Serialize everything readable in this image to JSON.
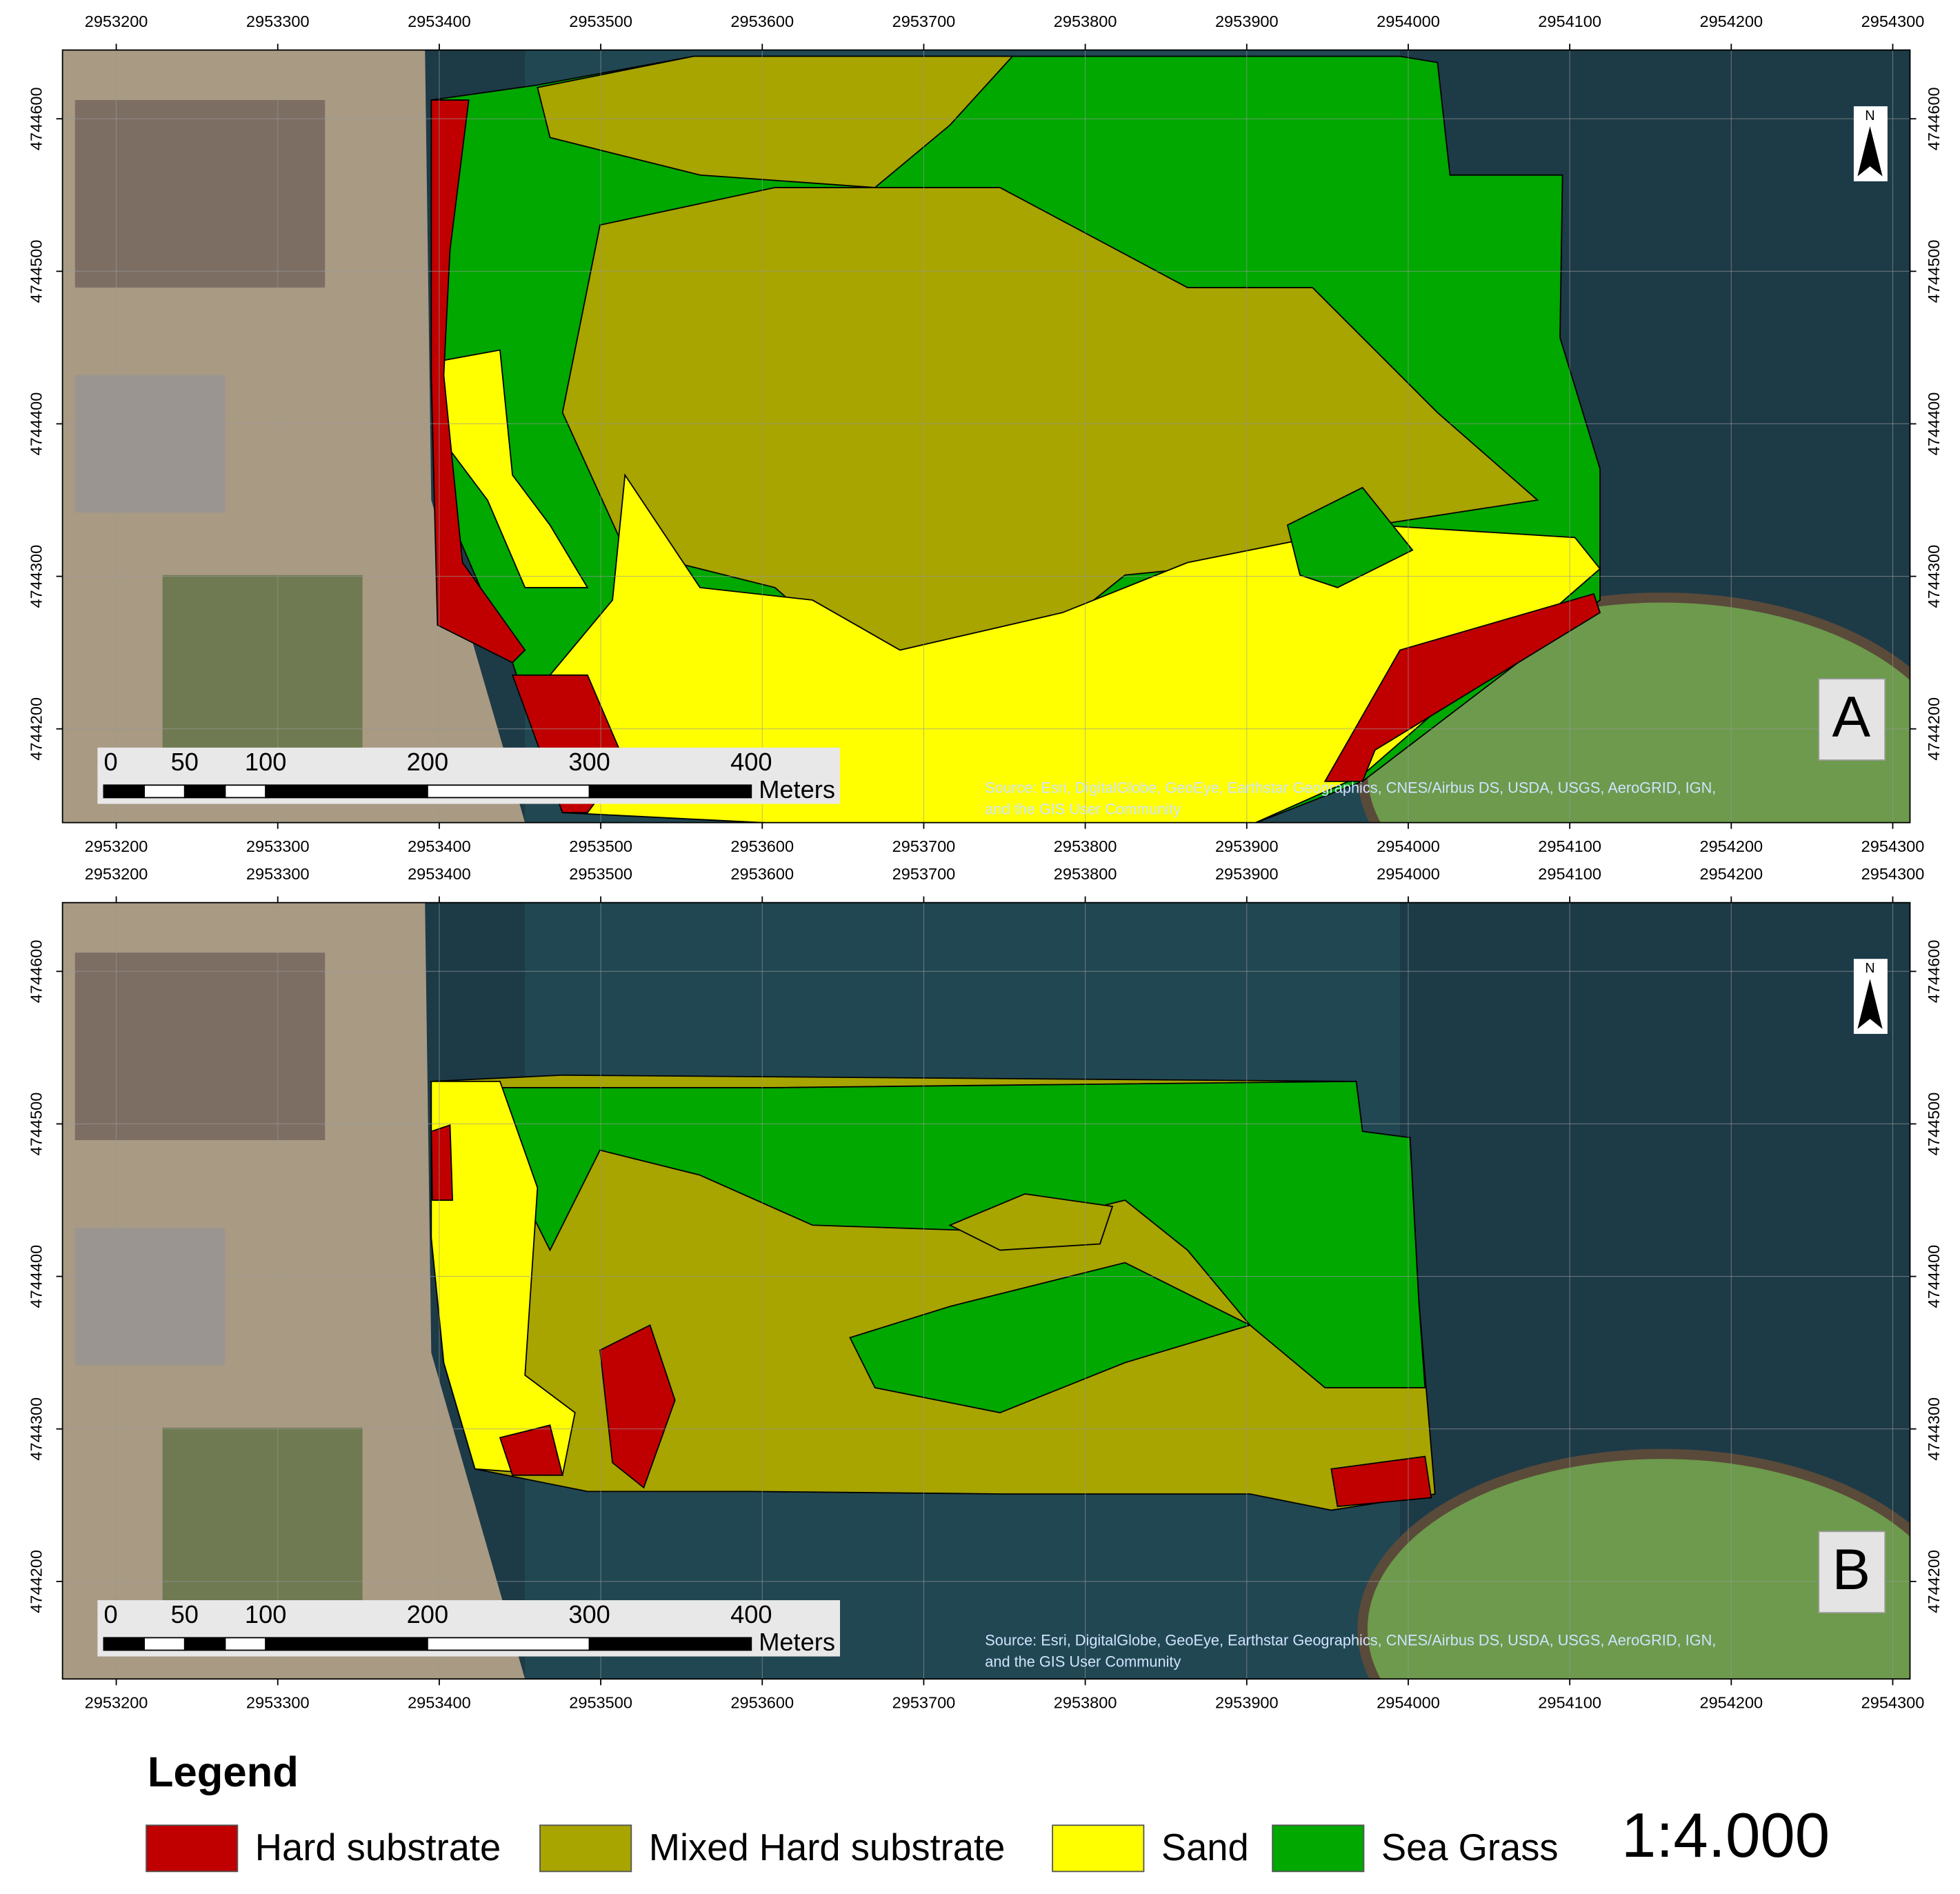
{
  "x_ticks": [
    2953200,
    2953300,
    2953400,
    2953500,
    2953600,
    2953700,
    2953800,
    2953900,
    2954000,
    2954100,
    2954200,
    2954300
  ],
  "y_ticks": [
    4744600,
    4744500,
    4744400,
    4744300,
    4744200
  ],
  "panels": [
    {
      "label": "A",
      "north": "N",
      "scale_bar": {
        "labels": [
          0,
          50,
          100,
          200,
          300,
          400
        ],
        "unit": "Meters"
      },
      "source": [
        "Source: Esri, DigitalGlobe, GeoEye, Earthstar Geographics, CNES/Airbus DS, USDA, USGS, AeroGRID, IGN,",
        "and the GIS User Community"
      ]
    },
    {
      "label": "B",
      "north": "N",
      "scale_bar": {
        "labels": [
          0,
          50,
          100,
          200,
          300,
          400
        ],
        "unit": "Meters"
      },
      "source": [
        "Source: Esri, DigitalGlobe, GeoEye, Earthstar Geographics, CNES/Airbus DS, USDA, USGS, AeroGRID, IGN,",
        "and the GIS User Community"
      ]
    }
  ],
  "legend": {
    "title": "Legend",
    "items": [
      {
        "label": "Hard substrate",
        "color": "#c00000"
      },
      {
        "label": "Mixed Hard substrate",
        "color": "#a8a400"
      },
      {
        "label": "Sand",
        "color": "#ffff00"
      },
      {
        "label": "Sea Grass",
        "color": "#00a800"
      }
    ]
  },
  "scale": "1:4.000"
}
